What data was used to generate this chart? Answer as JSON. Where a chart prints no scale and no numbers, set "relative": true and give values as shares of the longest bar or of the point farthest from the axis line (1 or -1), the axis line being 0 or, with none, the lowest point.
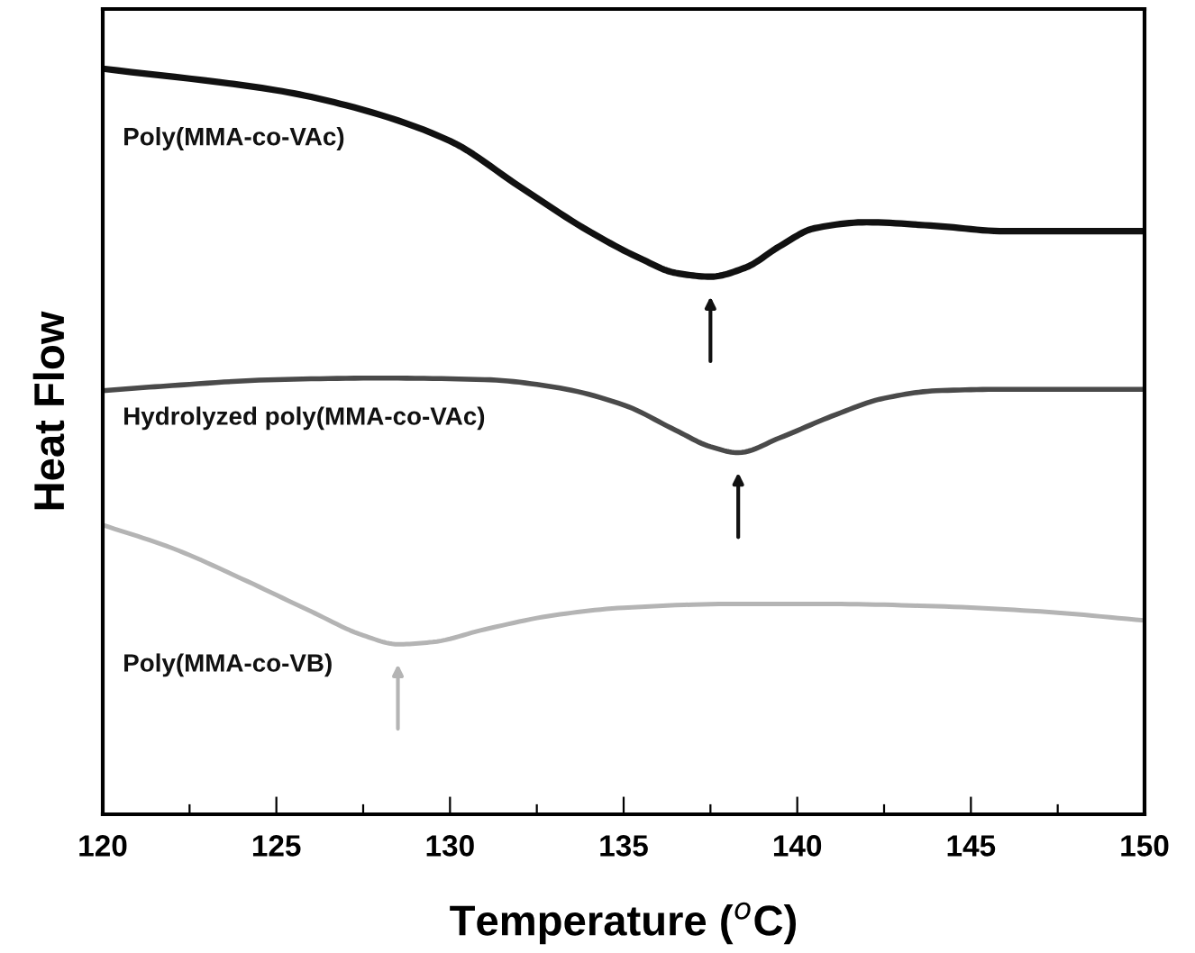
{
  "chart_data": {
    "type": "line",
    "relative": true,
    "xlabel": "Temperature ($^{o}$C)",
    "ylabel": "Heat Flow",
    "xlim": [
      120,
      150
    ],
    "xticks": [
      120,
      {
        "value": 122.5,
        "label": null
      },
      125,
      {
        "value": 127.5,
        "label": null
      },
      130,
      {
        "value": 132.5,
        "label": null
      },
      135,
      {
        "value": 137.5,
        "label": null
      },
      140,
      {
        "value": 142.5,
        "label": null
      },
      145,
      {
        "value": 147.5,
        "label": null
      },
      150
    ],
    "tick_labels": "x",
    "grid": false,
    "legend": false,
    "marker": "none",
    "line_style": "solid",
    "series": [
      {
        "name": "Poly(MMA-co-VAc)",
        "color": "#111111",
        "x": [
          120,
          125,
          127,
          130,
          132,
          134,
          135.5,
          136.5,
          137.5,
          138.5,
          139.5,
          140.5,
          142,
          144,
          146,
          148,
          150
        ],
        "values": [
          1.0,
          0.971,
          0.951,
          0.903,
          0.842,
          0.782,
          0.745,
          0.726,
          0.721,
          0.733,
          0.762,
          0.786,
          0.794,
          0.789,
          0.782,
          0.782,
          0.782
        ]
      },
      {
        "name": "Hydrolyzed poly(MMA-co-VAc)",
        "color": "#4a4a4a",
        "x": [
          120,
          122,
          125,
          128,
          131,
          133,
          135,
          136.5,
          137.5,
          138.3,
          139.5,
          141,
          142.5,
          144,
          146,
          150
        ],
        "values": [
          0.568,
          0.575,
          0.583,
          0.585,
          0.583,
          0.573,
          0.549,
          0.515,
          0.493,
          0.485,
          0.505,
          0.534,
          0.558,
          0.568,
          0.57,
          0.57
        ]
      },
      {
        "name": "Poly(MMA-co-VB)",
        "color": "#b4b4b4",
        "x": [
          120,
          122,
          124,
          126,
          127.5,
          128.5,
          129.5,
          131,
          133,
          135,
          138,
          141,
          144,
          147,
          150
        ],
        "values": [
          0.388,
          0.357,
          0.316,
          0.272,
          0.24,
          0.228,
          0.231,
          0.248,
          0.267,
          0.277,
          0.282,
          0.282,
          0.279,
          0.272,
          0.26
        ]
      }
    ]
  }
}
